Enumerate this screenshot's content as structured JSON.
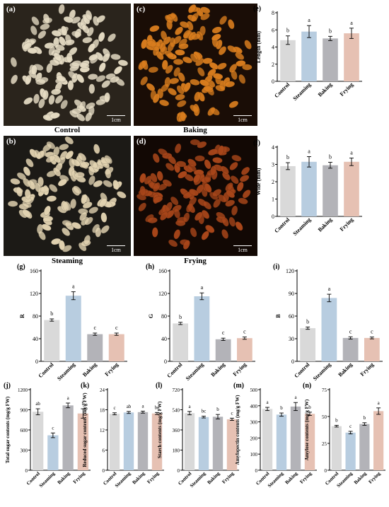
{
  "photos": [
    {
      "label": "(a)",
      "caption": "Control",
      "scale": "1cm",
      "bg": "#2a241c",
      "grain": "#e6dcc4"
    },
    {
      "label": "(b)",
      "caption": "Steaming",
      "scale": "1cm",
      "bg": "#1c1a16",
      "grain": "#e2d3b1"
    },
    {
      "label": "(c)",
      "caption": "Baking",
      "scale": "1cm",
      "bg": "#1a0d06",
      "grain": "#d97d1e"
    },
    {
      "label": "(d)",
      "caption": "Frying",
      "scale": "1cm",
      "bg": "#120804",
      "grain": "#a8461a"
    }
  ],
  "colors": {
    "Control": "#d9d9d9",
    "Steaming": "#b8cde0",
    "Baking": "#b3b3b8",
    "Frying": "#e6c1b3"
  },
  "chart_data": [
    {
      "type": "bar",
      "label": "(e)",
      "ylabel": "Length (mm)",
      "yticks": [
        0,
        2,
        4,
        6,
        8
      ],
      "ylim": [
        0,
        8
      ],
      "categories": [
        "Control",
        "Steaming",
        "Baking",
        "Frying"
      ],
      "values": [
        4.8,
        5.8,
        5.0,
        5.6
      ],
      "errors": [
        0.5,
        0.7,
        0.25,
        0.6
      ],
      "letters": [
        "b",
        "a",
        "b",
        "a"
      ]
    },
    {
      "type": "bar",
      "label": "(f)",
      "ylabel": "Wide (mm)",
      "yticks": [
        0,
        1,
        2,
        3,
        4
      ],
      "ylim": [
        0,
        4
      ],
      "categories": [
        "Control",
        "Steaming",
        "Baking",
        "Frying"
      ],
      "values": [
        2.9,
        3.15,
        2.95,
        3.15
      ],
      "errors": [
        0.2,
        0.3,
        0.17,
        0.22
      ],
      "letters": [
        "b",
        "a",
        "b",
        "a"
      ]
    },
    {
      "type": "bar",
      "label": "(g)",
      "ylabel": "R",
      "yticks": [
        0,
        40,
        80,
        120,
        160
      ],
      "ylim": [
        0,
        160
      ],
      "categories": [
        "Control",
        "Steaming",
        "Baking",
        "Frying"
      ],
      "values": [
        73,
        116,
        48,
        48
      ],
      "errors": [
        2,
        7,
        2,
        2
      ],
      "letters": [
        "b",
        "a",
        "c",
        "c"
      ]
    },
    {
      "type": "bar",
      "label": "(h)",
      "ylabel": "G",
      "yticks": [
        0,
        40,
        80,
        120,
        160
      ],
      "ylim": [
        0,
        160
      ],
      "categories": [
        "Control",
        "Steaming",
        "Baking",
        "Frying"
      ],
      "values": [
        67,
        115,
        39,
        41
      ],
      "errors": [
        2,
        6,
        2,
        2
      ],
      "letters": [
        "b",
        "a",
        "c",
        "c"
      ]
    },
    {
      "type": "bar",
      "label": "(i)",
      "ylabel": "B",
      "yticks": [
        0,
        30,
        60,
        90,
        120
      ],
      "ylim": [
        0,
        120
      ],
      "categories": [
        "Control",
        "Steaming",
        "Baking",
        "Frying"
      ],
      "values": [
        44,
        84,
        31,
        31
      ],
      "errors": [
        1.5,
        5,
        1.5,
        1.2
      ],
      "letters": [
        "b",
        "a",
        "c",
        "c"
      ]
    },
    {
      "type": "bar",
      "label": "(j)",
      "ylabel": "Total sugar contents (mg/g FW)",
      "yticks": [
        0,
        300,
        600,
        900,
        1200
      ],
      "ylim": [
        0,
        1200
      ],
      "categories": [
        "Control",
        "Steaming",
        "Baking",
        "Frying"
      ],
      "values": [
        870,
        520,
        965,
        845
      ],
      "errors": [
        45,
        35,
        35,
        70
      ],
      "letters": [
        "ab",
        "c",
        "a",
        "b"
      ]
    },
    {
      "type": "bar",
      "label": "(k)",
      "ylabel": "Reduced sugar contents (mg/g FW)",
      "yticks": [
        0,
        6,
        12,
        18,
        24
      ],
      "ylim": [
        0,
        24
      ],
      "categories": [
        "Control",
        "Steaming",
        "Baking",
        "Frying"
      ],
      "values": [
        16.8,
        17.2,
        17.3,
        16.9
      ],
      "errors": [
        0.3,
        0.3,
        0.3,
        0.3
      ],
      "letters": [
        "c",
        "ab",
        "a",
        "bc"
      ]
    },
    {
      "type": "bar",
      "label": "(l)",
      "ylabel": "Starch contents (mg/g FW)",
      "yticks": [
        0,
        180,
        360,
        540,
        720
      ],
      "ylim": [
        0,
        720
      ],
      "categories": [
        "Control",
        "Steaming",
        "Baking",
        "Frying"
      ],
      "values": [
        510,
        475,
        478,
        455
      ],
      "errors": [
        15,
        8,
        20,
        10
      ],
      "letters": [
        "a",
        "bc",
        "b",
        "c"
      ]
    },
    {
      "type": "bar",
      "label": "(m)",
      "ylabel": "Amylopectin contents (mg/g FW)",
      "yticks": [
        0,
        100,
        200,
        300,
        400,
        500
      ],
      "ylim": [
        0,
        500
      ],
      "categories": [
        "Control",
        "Steaming",
        "Baking",
        "Frying"
      ],
      "values": [
        380,
        345,
        395,
        350
      ],
      "errors": [
        10,
        10,
        25,
        10
      ],
      "letters": [
        "a",
        "b",
        "a",
        "b"
      ]
    },
    {
      "type": "bar",
      "label": "(n)",
      "ylabel": "Amylose contents (mg/g FW)",
      "yticks": [
        0,
        25,
        50,
        75
      ],
      "ylim": [
        0,
        75
      ],
      "categories": [
        "Control",
        "Steaming",
        "Baking",
        "Frying"
      ],
      "values": [
        41,
        35,
        43,
        55
      ],
      "errors": [
        0.8,
        1.2,
        1.2,
        3
      ],
      "letters": [
        "b",
        "c",
        "b",
        "a"
      ]
    }
  ]
}
